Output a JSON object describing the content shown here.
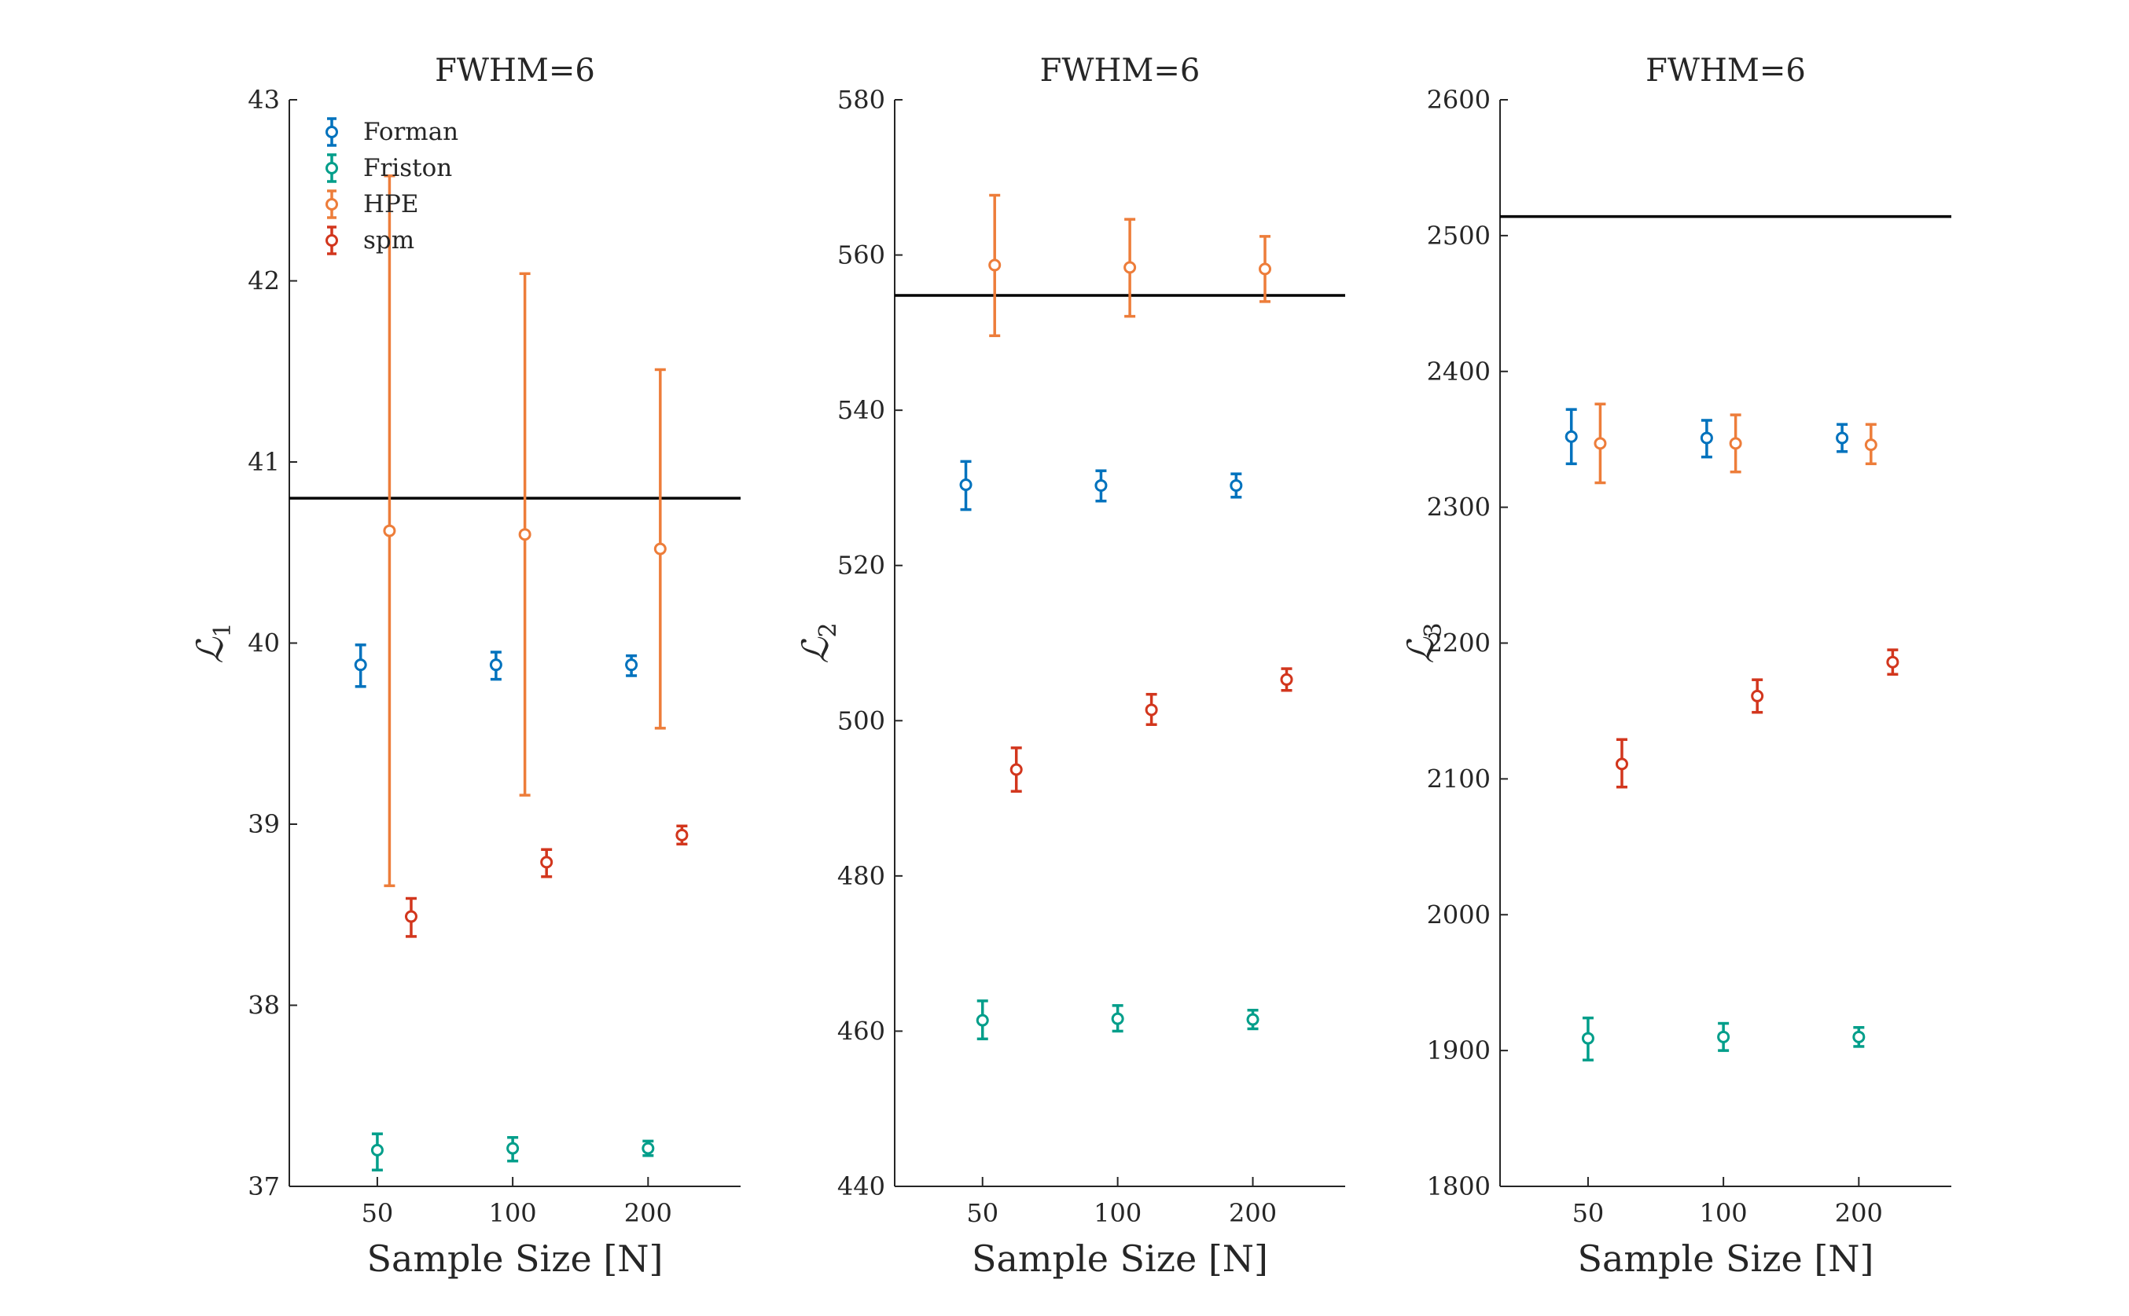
{
  "colors": {
    "Forman": "#0072BD",
    "Friston": "#009E8A",
    "HPE": "#ED7D3A",
    "spm": "#D2361D",
    "reference": "#000000",
    "axis": "#262626"
  },
  "legend": [
    "Forman",
    "Friston",
    "HPE",
    "spm"
  ],
  "chart_data": [
    {
      "type": "scatter",
      "title": "FWHM=6",
      "xlabel": "Sample Size [N]",
      "ylabel": "ℒ",
      "ylabel_sub": "1",
      "categories": [
        "50",
        "100",
        "200"
      ],
      "ylim": [
        37,
        43
      ],
      "yticks": [
        "37",
        "38",
        "39",
        "40",
        "41",
        "42",
        "43"
      ],
      "reference_line": 40.8,
      "legend_position": "top-left",
      "series": [
        {
          "name": "Forman",
          "values": [
            39.88,
            39.88,
            39.88
          ],
          "lower": [
            39.76,
            39.8,
            39.82
          ],
          "upper": [
            39.99,
            39.95,
            39.93
          ]
        },
        {
          "name": "Friston",
          "values": [
            37.2,
            37.21,
            37.21
          ],
          "lower": [
            37.09,
            37.14,
            37.17
          ],
          "upper": [
            37.29,
            37.27,
            37.25
          ]
        },
        {
          "name": "HPE",
          "values": [
            40.62,
            40.6,
            40.52
          ],
          "lower": [
            38.66,
            39.16,
            39.53
          ],
          "upper": [
            42.58,
            42.04,
            41.51
          ]
        },
        {
          "name": "spm",
          "values": [
            38.49,
            38.79,
            38.94
          ],
          "lower": [
            38.38,
            38.71,
            38.89
          ],
          "upper": [
            38.59,
            38.86,
            38.99
          ]
        }
      ]
    },
    {
      "type": "scatter",
      "title": "FWHM=6",
      "xlabel": "Sample Size [N]",
      "ylabel": "ℒ",
      "ylabel_sub": "2",
      "categories": [
        "50",
        "100",
        "200"
      ],
      "ylim": [
        440,
        580
      ],
      "yticks": [
        "440",
        "460",
        "480",
        "500",
        "520",
        "540",
        "560",
        "580"
      ],
      "reference_line": 554.8,
      "series": [
        {
          "name": "Forman",
          "values": [
            530.4,
            530.3,
            530.3
          ],
          "lower": [
            527.2,
            528.3,
            528.8
          ],
          "upper": [
            533.4,
            532.2,
            531.8
          ]
        },
        {
          "name": "Friston",
          "values": [
            461.4,
            461.6,
            461.5
          ],
          "lower": [
            459.0,
            460.0,
            460.3
          ],
          "upper": [
            463.9,
            463.3,
            462.7
          ]
        },
        {
          "name": "HPE",
          "values": [
            558.7,
            558.4,
            558.2
          ],
          "lower": [
            549.6,
            552.1,
            554.0
          ],
          "upper": [
            567.7,
            564.6,
            562.4
          ]
        },
        {
          "name": "spm",
          "values": [
            493.7,
            501.4,
            505.3
          ],
          "lower": [
            490.9,
            499.5,
            503.9
          ],
          "upper": [
            496.5,
            503.4,
            506.7
          ]
        }
      ]
    },
    {
      "type": "scatter",
      "title": "FWHM=6",
      "xlabel": "Sample Size [N]",
      "ylabel": "ℒ",
      "ylabel_sub": "3",
      "categories": [
        "50",
        "100",
        "200"
      ],
      "ylim": [
        1800,
        2600
      ],
      "yticks": [
        "1800",
        "1900",
        "2000",
        "2100",
        "2200",
        "2300",
        "2400",
        "2500",
        "2600"
      ],
      "reference_line": 2514,
      "series": [
        {
          "name": "Forman",
          "values": [
            2352,
            2351,
            2351
          ],
          "lower": [
            2332,
            2337,
            2341
          ],
          "upper": [
            2372,
            2364,
            2361
          ]
        },
        {
          "name": "Friston",
          "values": [
            1909,
            1910,
            1910
          ],
          "lower": [
            1893,
            1900,
            1903
          ],
          "upper": [
            1924,
            1920,
            1917
          ]
        },
        {
          "name": "HPE",
          "values": [
            2347,
            2347,
            2346
          ],
          "lower": [
            2318,
            2326,
            2332
          ],
          "upper": [
            2376,
            2368,
            2361
          ]
        },
        {
          "name": "spm",
          "values": [
            2111,
            2161,
            2186
          ],
          "lower": [
            2094,
            2149,
            2177
          ],
          "upper": [
            2129,
            2173,
            2195
          ]
        }
      ]
    }
  ]
}
